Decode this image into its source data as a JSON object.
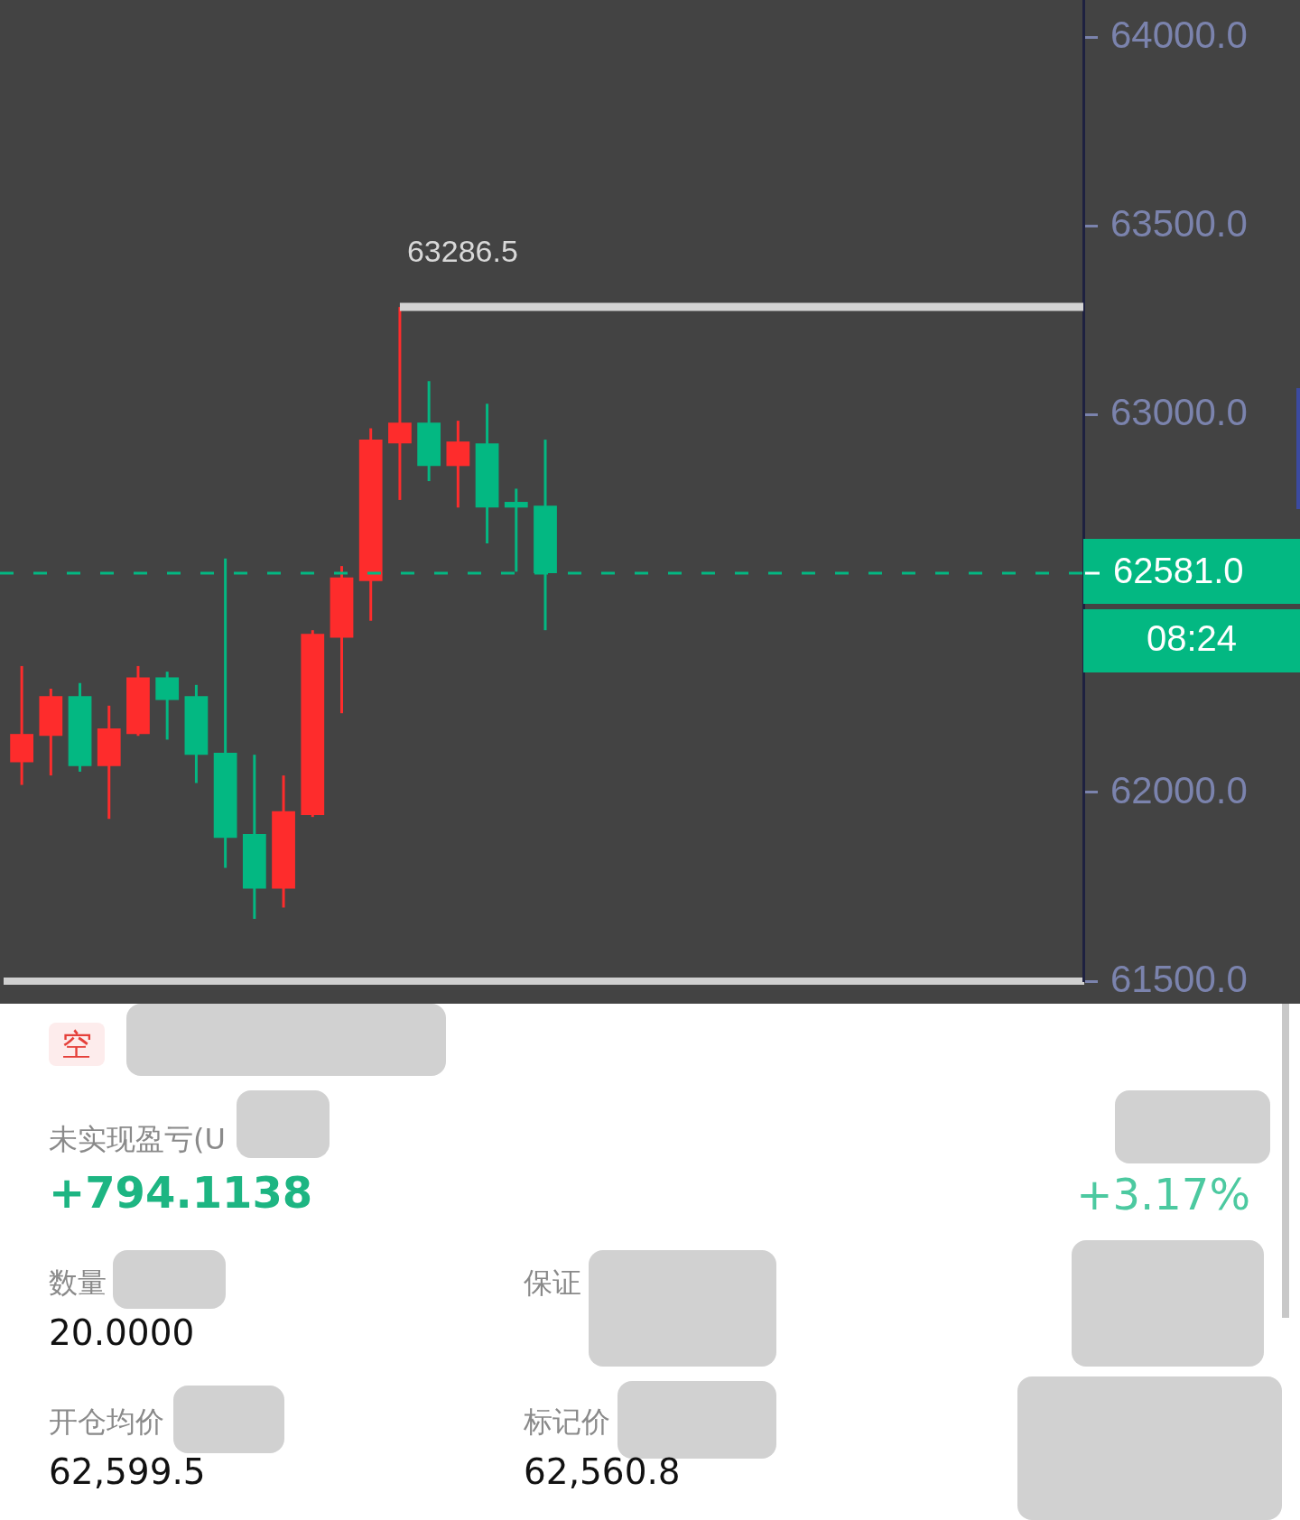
{
  "chart_data": [
    {
      "type": "candlestick",
      "categories": [
        null,
        null,
        null,
        null,
        null,
        null,
        null,
        null,
        null,
        null,
        null,
        null,
        null,
        null,
        null,
        null,
        null,
        null,
        null,
        null,
        null,
        null,
        null,
        null,
        null,
        null,
        null,
        null,
        null,
        null,
        null,
        null,
        null,
        null,
        null,
        null,
        null
      ],
      "ohlc": [
        [
          62080,
          62335,
          62020,
          62155
        ],
        [
          62150,
          62275,
          62045,
          62255
        ],
        [
          62255,
          62290,
          62055,
          62070
        ],
        [
          62070,
          62230,
          61930,
          62170
        ],
        [
          62155,
          62335,
          62150,
          62305
        ],
        [
          62305,
          62320,
          62140,
          62245
        ],
        [
          62255,
          62285,
          62025,
          62100
        ],
        [
          62105,
          62620,
          61800,
          61880
        ],
        [
          61890,
          62100,
          61665,
          61745
        ],
        [
          61745,
          62045,
          61695,
          61950
        ],
        [
          61940,
          62430,
          61935,
          62420
        ],
        [
          62410,
          62600,
          62210,
          62570
        ],
        [
          62560,
          62965,
          62455,
          62935
        ],
        [
          62925,
          63286.5,
          62775,
          62980
        ],
        [
          62980,
          63090,
          62825,
          62865
        ],
        [
          62865,
          62985,
          62755,
          62930
        ],
        [
          62925,
          63030,
          62660,
          62755
        ],
        [
          62770,
          62805,
          62585,
          62755
        ],
        [
          62760,
          62935,
          62430,
          62581
        ],
        null,
        null,
        null,
        null,
        null,
        null,
        null,
        null,
        null,
        null,
        null,
        null,
        null,
        null,
        null,
        null,
        null,
        null
      ],
      "colors": [
        "#fe2c2c",
        "#fe2c2c",
        "#03b882",
        "#fe2c2c",
        "#fe2c2c",
        "#03b882",
        "#03b882",
        "#03b882",
        "#03b882",
        "#fe2c2c",
        "#fe2c2c",
        "#fe2c2c",
        "#fe2c2c",
        "#fe2c2c",
        "#03b882",
        "#fe2c2c",
        "#03b882",
        "#03b882",
        "#03b882",
        null,
        null,
        null,
        null,
        null,
        null,
        null,
        null,
        null,
        null,
        null,
        null,
        null,
        null,
        null,
        null,
        null,
        null
      ],
      "ylim": [
        61500,
        64100
      ],
      "yticks": [
        {
          "value": 61500,
          "label": "61500.0"
        },
        {
          "value": 62000,
          "label": "62000.0"
        },
        {
          "value": 63000,
          "label": "63000.0"
        },
        {
          "value": 63500,
          "label": "63500.0"
        },
        {
          "value": 64000,
          "label": "64000.0"
        }
      ],
      "ref_lines": [
        {
          "axis": "y",
          "value": 63286.5,
          "label": "63286.5",
          "color": "#d4d4d4",
          "line_style": "solid"
        },
        {
          "axis": "y",
          "value": 62581,
          "label": "62581.0",
          "color": "#03b882",
          "line_style": "dashed"
        }
      ],
      "annotations": [
        "08:24"
      ]
    },
    {
      "type": "other",
      "annotations": [
        "空",
        "未实现盈亏(U",
        "+794.1138",
        "+3.17%",
        "数量",
        "保证",
        "20.0000",
        "开仓均价",
        "标记价",
        "62,599.5",
        "62,560.8"
      ]
    }
  ]
}
